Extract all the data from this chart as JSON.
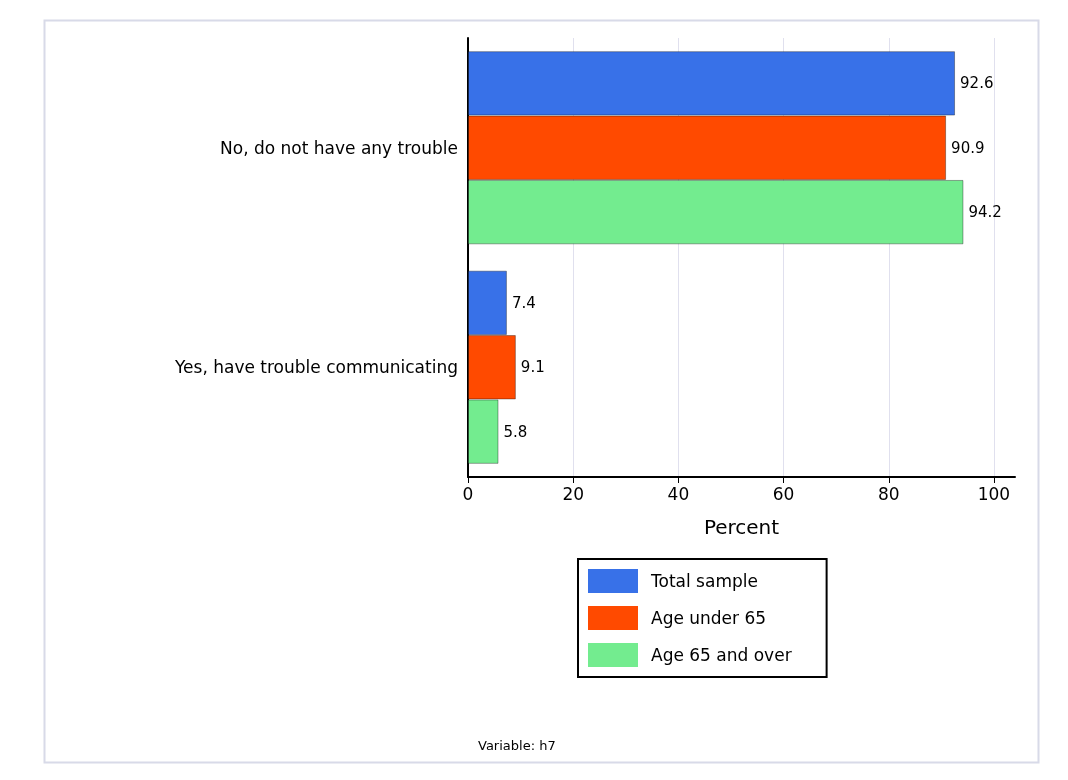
{
  "chart_data": {
    "type": "bar",
    "orientation": "horizontal",
    "categories": [
      "No, do not have any trouble",
      "Yes, have trouble communicating"
    ],
    "series": [
      {
        "name": "Total sample",
        "color": "#3871e8",
        "values": [
          92.6,
          7.4
        ]
      },
      {
        "name": "Age under 65",
        "color": "#ff4a00",
        "values": [
          90.9,
          9.1
        ]
      },
      {
        "name": "Age 65 and over",
        "color": "#73ec8f",
        "values": [
          94.2,
          5.8
        ]
      }
    ],
    "xlabel": "Percent",
    "xlim": [
      0,
      104
    ],
    "xticks": [
      0,
      20,
      40,
      60,
      80,
      100
    ],
    "grid": "x",
    "legend": "bottom",
    "data_labels": true,
    "annotations": [
      "Variable: h7"
    ]
  }
}
